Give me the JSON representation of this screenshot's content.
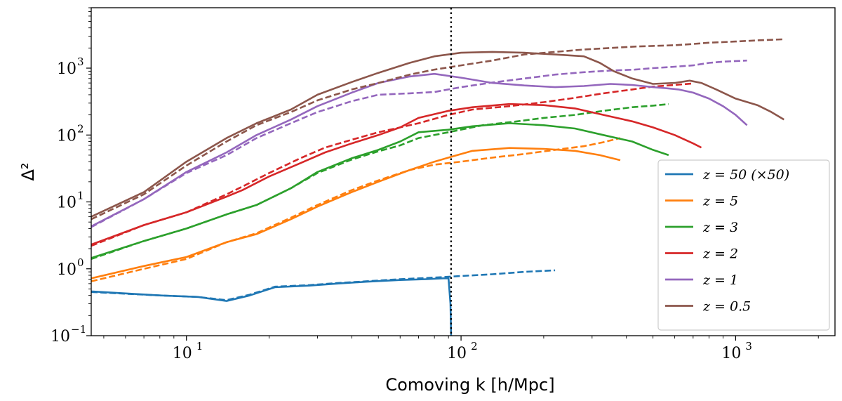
{
  "chart_data": {
    "type": "line",
    "xlabel": "Comoving k [h/Mpc]",
    "ylabel": "Δ²",
    "xscale": "log",
    "yscale": "log",
    "xlim": [
      4.5,
      2300
    ],
    "ylim": [
      0.1,
      8000
    ],
    "x_ticks": [
      {
        "value": 10,
        "label": "10",
        "exp": "1"
      },
      {
        "value": 100,
        "label": "10",
        "exp": "2"
      },
      {
        "value": 1000,
        "label": "10",
        "exp": "3"
      }
    ],
    "y_ticks": [
      {
        "value": 0.1,
        "label": "10",
        "exp": "−1"
      },
      {
        "value": 1,
        "label": "10",
        "exp": "0"
      },
      {
        "value": 10,
        "label": "10",
        "exp": "1"
      },
      {
        "value": 100,
        "label": "10",
        "exp": "2"
      },
      {
        "value": 1000,
        "label": "10",
        "exp": "3"
      }
    ],
    "vline": {
      "x": 92,
      "style": "dotted",
      "color": "#000000"
    },
    "legend": {
      "location": "lower-right"
    },
    "series": [
      {
        "name": "z = 50 (×50)",
        "color": "#1f77b4",
        "solid": [
          [
            4.5,
            0.46
          ],
          [
            8,
            0.4
          ],
          [
            11,
            0.38
          ],
          [
            14,
            0.33
          ],
          [
            17,
            0.4
          ],
          [
            21,
            0.53
          ],
          [
            28,
            0.56
          ],
          [
            35,
            0.6
          ],
          [
            45,
            0.64
          ],
          [
            60,
            0.68
          ],
          [
            75,
            0.7
          ],
          [
            86,
            0.72
          ],
          [
            90,
            0.72
          ],
          [
            91.5,
            0.3
          ],
          [
            92,
            0.1
          ]
        ],
        "dashed": [
          [
            4.5,
            0.45
          ],
          [
            8,
            0.4
          ],
          [
            11,
            0.38
          ],
          [
            14,
            0.34
          ],
          [
            17,
            0.41
          ],
          [
            21,
            0.54
          ],
          [
            28,
            0.57
          ],
          [
            35,
            0.61
          ],
          [
            45,
            0.65
          ],
          [
            60,
            0.7
          ],
          [
            75,
            0.73
          ],
          [
            90,
            0.76
          ],
          [
            100,
            0.78
          ],
          [
            130,
            0.83
          ],
          [
            170,
            0.9
          ],
          [
            220,
            0.95
          ]
        ]
      },
      {
        "name": "z = 5",
        "color": "#ff7f0e",
        "solid": [
          [
            4.5,
            0.72
          ],
          [
            7,
            1.1
          ],
          [
            10,
            1.5
          ],
          [
            14,
            2.5
          ],
          [
            18,
            3.3
          ],
          [
            24,
            5.5
          ],
          [
            30,
            8.5
          ],
          [
            40,
            14
          ],
          [
            50,
            20
          ],
          [
            65,
            30
          ],
          [
            80,
            40
          ],
          [
            90,
            46
          ],
          [
            110,
            58
          ],
          [
            150,
            64
          ],
          [
            200,
            62
          ],
          [
            260,
            58
          ],
          [
            320,
            50
          ],
          [
            380,
            42
          ]
        ],
        "dashed": [
          [
            4.5,
            0.65
          ],
          [
            7,
            1.0
          ],
          [
            10,
            1.4
          ],
          [
            14,
            2.5
          ],
          [
            18,
            3.4
          ],
          [
            24,
            5.8
          ],
          [
            30,
            9
          ],
          [
            40,
            15
          ],
          [
            50,
            21
          ],
          [
            65,
            30
          ],
          [
            80,
            36
          ],
          [
            100,
            40
          ],
          [
            130,
            46
          ],
          [
            170,
            52
          ],
          [
            220,
            60
          ],
          [
            280,
            68
          ],
          [
            330,
            78
          ],
          [
            380,
            90
          ]
        ]
      },
      {
        "name": "z = 3",
        "color": "#2ca02c",
        "solid": [
          [
            4.5,
            1.45
          ],
          [
            7,
            2.6
          ],
          [
            10,
            4
          ],
          [
            14,
            6.5
          ],
          [
            18,
            9
          ],
          [
            24,
            16
          ],
          [
            30,
            28
          ],
          [
            40,
            45
          ],
          [
            50,
            60
          ],
          [
            60,
            80
          ],
          [
            70,
            110
          ],
          [
            90,
            120
          ],
          [
            110,
            135
          ],
          [
            150,
            150
          ],
          [
            200,
            140
          ],
          [
            260,
            125
          ],
          [
            330,
            100
          ],
          [
            420,
            80
          ],
          [
            500,
            60
          ],
          [
            570,
            50
          ]
        ],
        "dashed": [
          [
            4.5,
            1.4
          ],
          [
            7,
            2.6
          ],
          [
            10,
            4
          ],
          [
            14,
            6.5
          ],
          [
            18,
            9
          ],
          [
            24,
            16
          ],
          [
            30,
            27
          ],
          [
            40,
            43
          ],
          [
            50,
            57
          ],
          [
            60,
            70
          ],
          [
            70,
            90
          ],
          [
            90,
            110
          ],
          [
            120,
            140
          ],
          [
            160,
            160
          ],
          [
            200,
            180
          ],
          [
            260,
            200
          ],
          [
            330,
            230
          ],
          [
            420,
            260
          ],
          [
            500,
            275
          ],
          [
            570,
            290
          ]
        ]
      },
      {
        "name": "z = 2",
        "color": "#d62728",
        "solid": [
          [
            4.5,
            2.3
          ],
          [
            7,
            4.5
          ],
          [
            10,
            7
          ],
          [
            14,
            12
          ],
          [
            16,
            15
          ],
          [
            20,
            24
          ],
          [
            26,
            38
          ],
          [
            32,
            55
          ],
          [
            40,
            75
          ],
          [
            50,
            100
          ],
          [
            60,
            130
          ],
          [
            70,
            180
          ],
          [
            90,
            230
          ],
          [
            110,
            260
          ],
          [
            150,
            290
          ],
          [
            200,
            280
          ],
          [
            260,
            250
          ],
          [
            330,
            200
          ],
          [
            420,
            160
          ],
          [
            500,
            130
          ],
          [
            600,
            100
          ],
          [
            700,
            75
          ],
          [
            750,
            65
          ]
        ],
        "dashed": [
          [
            4.5,
            2.2
          ],
          [
            7,
            4.5
          ],
          [
            10,
            7
          ],
          [
            14,
            13
          ],
          [
            16,
            17
          ],
          [
            20,
            27
          ],
          [
            26,
            45
          ],
          [
            32,
            65
          ],
          [
            40,
            85
          ],
          [
            50,
            110
          ],
          [
            60,
            130
          ],
          [
            70,
            150
          ],
          [
            90,
            200
          ],
          [
            110,
            240
          ],
          [
            150,
            270
          ],
          [
            200,
            310
          ],
          [
            260,
            360
          ],
          [
            330,
            420
          ],
          [
            420,
            480
          ],
          [
            500,
            530
          ],
          [
            600,
            560
          ],
          [
            700,
            590
          ]
        ]
      },
      {
        "name": "z = 1",
        "color": "#9467bd",
        "solid": [
          [
            4.5,
            4.3
          ],
          [
            7,
            11
          ],
          [
            10,
            28
          ],
          [
            14,
            55
          ],
          [
            18,
            100
          ],
          [
            24,
            170
          ],
          [
            30,
            270
          ],
          [
            40,
            430
          ],
          [
            50,
            600
          ],
          [
            65,
            750
          ],
          [
            80,
            820
          ],
          [
            100,
            720
          ],
          [
            130,
            600
          ],
          [
            170,
            550
          ],
          [
            220,
            520
          ],
          [
            280,
            540
          ],
          [
            350,
            580
          ],
          [
            420,
            560
          ],
          [
            500,
            520
          ],
          [
            560,
            500
          ],
          [
            620,
            480
          ],
          [
            700,
            430
          ],
          [
            800,
            350
          ],
          [
            900,
            270
          ],
          [
            1000,
            200
          ],
          [
            1100,
            140
          ]
        ],
        "dashed": [
          [
            4.5,
            4.2
          ],
          [
            7,
            11
          ],
          [
            10,
            27
          ],
          [
            14,
            50
          ],
          [
            18,
            90
          ],
          [
            24,
            150
          ],
          [
            30,
            220
          ],
          [
            40,
            320
          ],
          [
            50,
            400
          ],
          [
            65,
            420
          ],
          [
            80,
            440
          ],
          [
            100,
            520
          ],
          [
            130,
            610
          ],
          [
            170,
            700
          ],
          [
            220,
            800
          ],
          [
            280,
            870
          ],
          [
            350,
            920
          ],
          [
            430,
            950
          ],
          [
            500,
            1000
          ],
          [
            600,
            1050
          ],
          [
            700,
            1100
          ],
          [
            800,
            1200
          ],
          [
            900,
            1250
          ],
          [
            1100,
            1300
          ]
        ]
      },
      {
        "name": "z = 0.5",
        "color": "#8c564b",
        "solid": [
          [
            4.5,
            6
          ],
          [
            7,
            14
          ],
          [
            10,
            40
          ],
          [
            14,
            90
          ],
          [
            18,
            150
          ],
          [
            24,
            240
          ],
          [
            30,
            400
          ],
          [
            40,
            620
          ],
          [
            50,
            850
          ],
          [
            65,
            1200
          ],
          [
            80,
            1500
          ],
          [
            100,
            1700
          ],
          [
            130,
            1750
          ],
          [
            170,
            1700
          ],
          [
            220,
            1600
          ],
          [
            280,
            1500
          ],
          [
            320,
            1200
          ],
          [
            360,
            900
          ],
          [
            420,
            700
          ],
          [
            500,
            580
          ],
          [
            600,
            600
          ],
          [
            680,
            650
          ],
          [
            750,
            600
          ],
          [
            850,
            480
          ],
          [
            1000,
            350
          ],
          [
            1200,
            280
          ],
          [
            1350,
            220
          ],
          [
            1500,
            170
          ]
        ],
        "dashed": [
          [
            4.5,
            5.5
          ],
          [
            7,
            13
          ],
          [
            10,
            35
          ],
          [
            14,
            80
          ],
          [
            18,
            140
          ],
          [
            24,
            220
          ],
          [
            30,
            330
          ],
          [
            40,
            480
          ],
          [
            50,
            600
          ],
          [
            65,
            800
          ],
          [
            80,
            950
          ],
          [
            100,
            1100
          ],
          [
            130,
            1300
          ],
          [
            170,
            1600
          ],
          [
            220,
            1750
          ],
          [
            280,
            1900
          ],
          [
            350,
            2000
          ],
          [
            430,
            2100
          ],
          [
            500,
            2150
          ],
          [
            600,
            2200
          ],
          [
            700,
            2300
          ],
          [
            800,
            2400
          ],
          [
            1000,
            2500
          ],
          [
            1200,
            2600
          ],
          [
            1500,
            2700
          ]
        ]
      }
    ]
  }
}
